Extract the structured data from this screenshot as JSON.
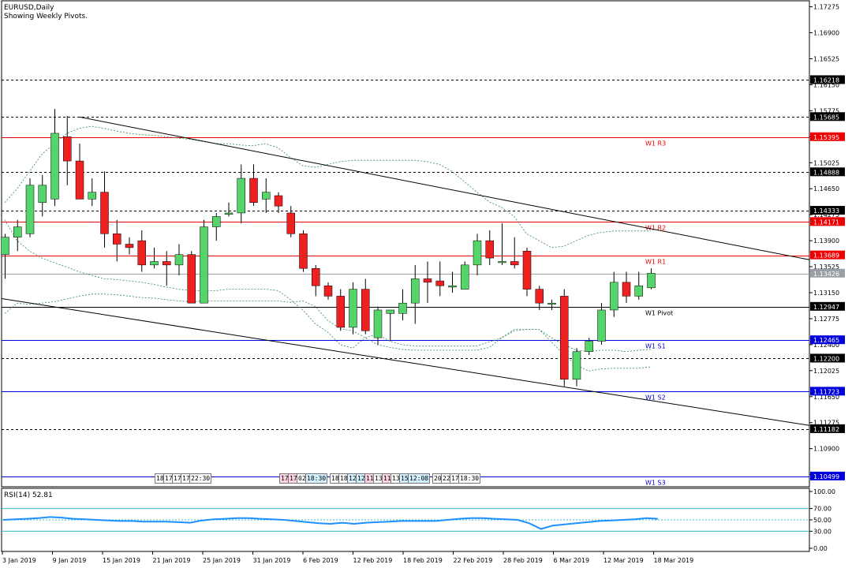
{
  "window": {
    "symbol_title": "EURUSD,Daily",
    "subtitle": "Showing Weekly Pivots."
  },
  "colors": {
    "bull": "#55d46a",
    "bear": "#ee2020",
    "pivot_red": "#ee0000",
    "pivot_blue": "#0000dd",
    "rsi_line": "#1e90ff",
    "rsi_level": "#38b7c8"
  },
  "chart_data": {
    "type": "candlestick",
    "price_axis": {
      "range": [
        1.1035,
        1.1735
      ],
      "ticks": [
        "1.17275",
        "1.16900",
        "1.16525",
        "1.16150",
        "1.15775",
        "1.15400",
        "1.15025",
        "1.14650",
        "1.14275",
        "1.13900",
        "1.13525",
        "1.13150",
        "1.12775",
        "1.12400",
        "1.12025",
        "1.11650",
        "1.11275",
        "1.10900",
        "1.10525"
      ]
    },
    "date_axis": [
      "3 Jan 2019",
      "9 Jan 2019",
      "15 Jan 2019",
      "21 Jan 2019",
      "25 Jan 2019",
      "31 Jan 2019",
      "6 Feb 2019",
      "12 Feb 2019",
      "18 Feb 2019",
      "22 Feb 2019",
      "28 Feb 2019",
      "6 Mar 2019",
      "12 Mar 2019",
      "18 Mar 2019"
    ],
    "candles": [
      {
        "o": 1.137,
        "h": 1.14,
        "l": 1.1335,
        "c": 1.1395
      },
      {
        "o": 1.1395,
        "h": 1.142,
        "l": 1.1375,
        "c": 1.141
      },
      {
        "o": 1.14,
        "h": 1.148,
        "l": 1.1395,
        "c": 1.147
      },
      {
        "o": 1.1445,
        "h": 1.1485,
        "l": 1.1425,
        "c": 1.147
      },
      {
        "o": 1.145,
        "h": 1.158,
        "l": 1.144,
        "c": 1.1545
      },
      {
        "o": 1.154,
        "h": 1.157,
        "l": 1.147,
        "c": 1.1505
      },
      {
        "o": 1.1505,
        "h": 1.153,
        "l": 1.145,
        "c": 1.145
      },
      {
        "o": 1.145,
        "h": 1.148,
        "l": 1.144,
        "c": 1.146
      },
      {
        "o": 1.146,
        "h": 1.149,
        "l": 1.138,
        "c": 1.14
      },
      {
        "o": 1.14,
        "h": 1.142,
        "l": 1.136,
        "c": 1.1385
      },
      {
        "o": 1.1385,
        "h": 1.1395,
        "l": 1.137,
        "c": 1.138
      },
      {
        "o": 1.139,
        "h": 1.1405,
        "l": 1.1345,
        "c": 1.1355
      },
      {
        "o": 1.1355,
        "h": 1.138,
        "l": 1.135,
        "c": 1.136
      },
      {
        "o": 1.136,
        "h": 1.1375,
        "l": 1.1325,
        "c": 1.1355
      },
      {
        "o": 1.1355,
        "h": 1.1385,
        "l": 1.134,
        "c": 1.137
      },
      {
        "o": 1.137,
        "h": 1.1375,
        "l": 1.13,
        "c": 1.13
      },
      {
        "o": 1.13,
        "h": 1.142,
        "l": 1.13,
        "c": 1.141
      },
      {
        "o": 1.141,
        "h": 1.143,
        "l": 1.139,
        "c": 1.1425
      },
      {
        "o": 1.1428,
        "h": 1.1445,
        "l": 1.1425,
        "c": 1.143
      },
      {
        "o": 1.143,
        "h": 1.15,
        "l": 1.1415,
        "c": 1.148
      },
      {
        "o": 1.148,
        "h": 1.15,
        "l": 1.144,
        "c": 1.1445
      },
      {
        "o": 1.145,
        "h": 1.148,
        "l": 1.143,
        "c": 1.146
      },
      {
        "o": 1.1455,
        "h": 1.146,
        "l": 1.143,
        "c": 1.144
      },
      {
        "o": 1.143,
        "h": 1.144,
        "l": 1.1395,
        "c": 1.14
      },
      {
        "o": 1.14,
        "h": 1.1405,
        "l": 1.1345,
        "c": 1.135
      },
      {
        "o": 1.135,
        "h": 1.1355,
        "l": 1.131,
        "c": 1.1325
      },
      {
        "o": 1.1325,
        "h": 1.133,
        "l": 1.1305,
        "c": 1.131
      },
      {
        "o": 1.131,
        "h": 1.132,
        "l": 1.126,
        "c": 1.1265
      },
      {
        "o": 1.1265,
        "h": 1.133,
        "l": 1.1255,
        "c": 1.132
      },
      {
        "o": 1.132,
        "h": 1.1335,
        "l": 1.1255,
        "c": 1.126
      },
      {
        "o": 1.125,
        "h": 1.1295,
        "l": 1.124,
        "c": 1.129
      },
      {
        "o": 1.1285,
        "h": 1.129,
        "l": 1.1245,
        "c": 1.129
      },
      {
        "o": 1.1285,
        "h": 1.132,
        "l": 1.1275,
        "c": 1.13
      },
      {
        "o": 1.13,
        "h": 1.1355,
        "l": 1.127,
        "c": 1.1335
      },
      {
        "o": 1.1335,
        "h": 1.136,
        "l": 1.13,
        "c": 1.133
      },
      {
        "o": 1.1332,
        "h": 1.136,
        "l": 1.131,
        "c": 1.1325
      },
      {
        "o": 1.1323,
        "h": 1.1345,
        "l": 1.1315,
        "c": 1.1325
      },
      {
        "o": 1.132,
        "h": 1.136,
        "l": 1.132,
        "c": 1.1355
      },
      {
        "o": 1.1355,
        "h": 1.14,
        "l": 1.134,
        "c": 1.139
      },
      {
        "o": 1.139,
        "h": 1.1405,
        "l": 1.1355,
        "c": 1.1365
      },
      {
        "o": 1.136,
        "h": 1.1415,
        "l": 1.1355,
        "c": 1.136
      },
      {
        "o": 1.136,
        "h": 1.1395,
        "l": 1.135,
        "c": 1.1355
      },
      {
        "o": 1.1375,
        "h": 1.138,
        "l": 1.131,
        "c": 1.132
      },
      {
        "o": 1.132,
        "h": 1.1325,
        "l": 1.129,
        "c": 1.13
      },
      {
        "o": 1.13,
        "h": 1.1305,
        "l": 1.129,
        "c": 1.13
      },
      {
        "o": 1.131,
        "h": 1.132,
        "l": 1.118,
        "c": 1.119
      },
      {
        "o": 1.119,
        "h": 1.1235,
        "l": 1.118,
        "c": 1.123
      },
      {
        "o": 1.123,
        "h": 1.125,
        "l": 1.1225,
        "c": 1.1245
      },
      {
        "o": 1.1245,
        "h": 1.13,
        "l": 1.124,
        "c": 1.129
      },
      {
        "o": 1.129,
        "h": 1.1345,
        "l": 1.128,
        "c": 1.133
      },
      {
        "o": 1.133,
        "h": 1.1345,
        "l": 1.13,
        "c": 1.131
      },
      {
        "o": 1.131,
        "h": 1.1345,
        "l": 1.1305,
        "c": 1.1325
      },
      {
        "o": 1.1322,
        "h": 1.135,
        "l": 1.132,
        "c": 1.1343
      }
    ],
    "upper_band": [
      1.1445,
      1.1465,
      1.149,
      1.1515,
      1.153,
      1.1545,
      1.1552,
      1.1555,
      1.1552,
      1.1548,
      1.1545,
      1.1543,
      1.1542,
      1.154,
      1.1538,
      1.1536,
      1.1533,
      1.153,
      1.153,
      1.1528,
      1.1527,
      1.153,
      1.1524,
      1.151,
      1.1498,
      1.1496,
      1.15,
      1.1504,
      1.1506,
      1.1506,
      1.1506,
      1.1506,
      1.1506,
      1.1506,
      1.1504,
      1.15,
      1.149,
      1.1475,
      1.146,
      1.1446,
      1.1438,
      1.1425,
      1.14,
      1.139,
      1.138,
      1.1382,
      1.139,
      1.1398,
      1.1402,
      1.1404,
      1.1404,
      1.1404,
      1.1404
    ],
    "middle_band": [
      1.1285,
      1.13,
      1.1298,
      1.13,
      1.1302,
      1.1306,
      1.131,
      1.1313,
      1.1313,
      1.1312,
      1.131,
      1.1308,
      1.1307,
      1.1305,
      1.1303,
      1.1302,
      1.1303,
      1.1303,
      1.1303,
      1.1303,
      1.1303,
      1.1303,
      1.1303,
      1.1301,
      1.1303,
      1.1295,
      1.1275,
      1.1263,
      1.126,
      1.125,
      1.124,
      1.1236,
      1.1233,
      1.1232,
      1.1232,
      1.1232,
      1.1232,
      1.1232,
      1.1232,
      1.1236,
      1.125,
      1.126,
      1.1262,
      1.1262,
      1.125,
      1.124,
      1.1232,
      1.123,
      1.1232,
      1.1232,
      1.123,
      1.1232,
      1.1233
    ],
    "lower_band": [
      1.142,
      1.139,
      1.1375,
      1.1365,
      1.1358,
      1.1352,
      1.1345,
      1.134,
      1.1335,
      1.1334,
      1.1332,
      1.133,
      1.1327,
      1.1323,
      1.132,
      1.1318,
      1.1318,
      1.1318,
      1.132,
      1.132,
      1.132,
      1.132,
      1.1318,
      1.1305,
      1.129,
      1.127,
      1.1258,
      1.124,
      1.1235,
      1.125,
      1.1255,
      1.1245,
      1.124,
      1.1238,
      1.1238,
      1.1238,
      1.1238,
      1.1238,
      1.1238,
      1.1244,
      1.125,
      1.1262,
      1.1262,
      1.1262,
      1.1244,
      1.1226,
      1.121,
      1.1202,
      1.1205,
      1.1206,
      1.1206,
      1.1206,
      1.1208
    ],
    "trendlines": [
      {
        "from": {
          "bar": 6,
          "price": 1.15685
        },
        "to": {
          "bar": "edge",
          "price": 1.13625
        }
      },
      {
        "from": {
          "bar": -0.5,
          "price": 1.13065
        },
        "to": {
          "bar": "edge",
          "price": 1.11235
        }
      }
    ],
    "price_levels": [
      {
        "value": 1.16218,
        "text": "1.16218",
        "style": "dash"
      },
      {
        "value": 1.15685,
        "text": "1.15685",
        "style": "dash"
      },
      {
        "value": 1.14888,
        "text": "1.14888",
        "style": "dash"
      },
      {
        "value": 1.14333,
        "text": "1.14333",
        "style": "dash"
      },
      {
        "value": 1.122,
        "text": "1.12200",
        "style": "dash"
      },
      {
        "value": 1.11182,
        "text": "1.11182",
        "style": "dash"
      },
      {
        "value": 1.13426,
        "text": "1.13426",
        "style": "current"
      },
      {
        "value": 1.15395,
        "text": "1.15395",
        "style": "red",
        "label": "W1  R3"
      },
      {
        "value": 1.14171,
        "text": "1.14171",
        "style": "red",
        "label": "W1  R2"
      },
      {
        "value": 1.13689,
        "text": "1.13689",
        "style": "red",
        "label": "W1  R1"
      },
      {
        "value": 1.12947,
        "text": "1.12947",
        "style": "black",
        "label": "W1  Pivot"
      },
      {
        "value": 1.12465,
        "text": "1.12465",
        "style": "blue",
        "label": "W1  S1"
      },
      {
        "value": 1.11723,
        "text": "1.11723",
        "style": "blue",
        "label": "W1  S2"
      },
      {
        "value": 1.10499,
        "text": "1.10499",
        "style": "blue",
        "label": "W1  S3"
      }
    ],
    "rsi": {
      "label": "RSI(14) 52.81",
      "ticks": [
        "100.00",
        "70.00",
        "50.00",
        "30.00",
        "0.00"
      ],
      "levels": [
        70,
        30
      ],
      "values": [
        50,
        51,
        52,
        53,
        55,
        54,
        52,
        51,
        50,
        49,
        48,
        48,
        47,
        47,
        47,
        46,
        45,
        49,
        51,
        52,
        53,
        53,
        52,
        51,
        50,
        48,
        46,
        44,
        43,
        45,
        43,
        45,
        46,
        47,
        48,
        48,
        48,
        48,
        50,
        52,
        53,
        53,
        52,
        51,
        50,
        44,
        34,
        40,
        42,
        44,
        46,
        48,
        49,
        50,
        51,
        53,
        52
      ]
    },
    "events": [
      {
        "group": "a",
        "items": [
          "18:",
          "17:",
          "17:",
          "17:",
          "22:30"
        ]
      },
      {
        "group": "b",
        "items": [
          "17:",
          "17:",
          "02:",
          "18:30",
          "18:",
          "18:",
          "12:",
          "12:",
          "11:",
          "13:",
          "11:",
          "13:",
          "15:",
          "12:08",
          "20:",
          "22:",
          "17:",
          "18:30"
        ],
        "tints": [
          "pink",
          "pink",
          "none",
          "blue",
          "none",
          "none",
          "blue",
          "blue",
          "pink",
          "none",
          "pink",
          "none",
          "blue",
          "blue",
          "none",
          "none",
          "none",
          "none"
        ]
      }
    ]
  }
}
